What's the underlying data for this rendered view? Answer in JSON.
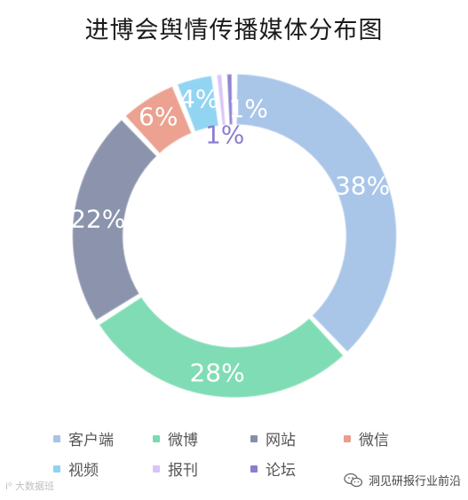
{
  "chart_data": {
    "type": "pie",
    "title": "进博会舆情传播媒体分布图",
    "categories": [
      "客户端",
      "微博",
      "网站",
      "微信",
      "视频",
      "报刊",
      "论坛"
    ],
    "values": [
      38,
      28,
      22,
      6,
      4,
      1,
      1
    ],
    "labels": [
      "38%",
      "28%",
      "22%",
      "6%",
      "4%",
      "1%",
      "1%"
    ],
    "colors": [
      "#a5c4e8",
      "#7adbb2",
      "#858fa8",
      "#ec9d8c",
      "#8dd3f2",
      "#d9c3f5",
      "#8a7ed0"
    ],
    "label_colors": [
      "#ffffff",
      "#ffffff",
      "#ffffff",
      "#ffffff",
      "#ffffff",
      "#8a7ed0",
      "#ffffff"
    ],
    "legend_position": "bottom"
  },
  "watermark_left": "i⁰ 大数据班",
  "watermark_right": "洞见研报行业前沿"
}
